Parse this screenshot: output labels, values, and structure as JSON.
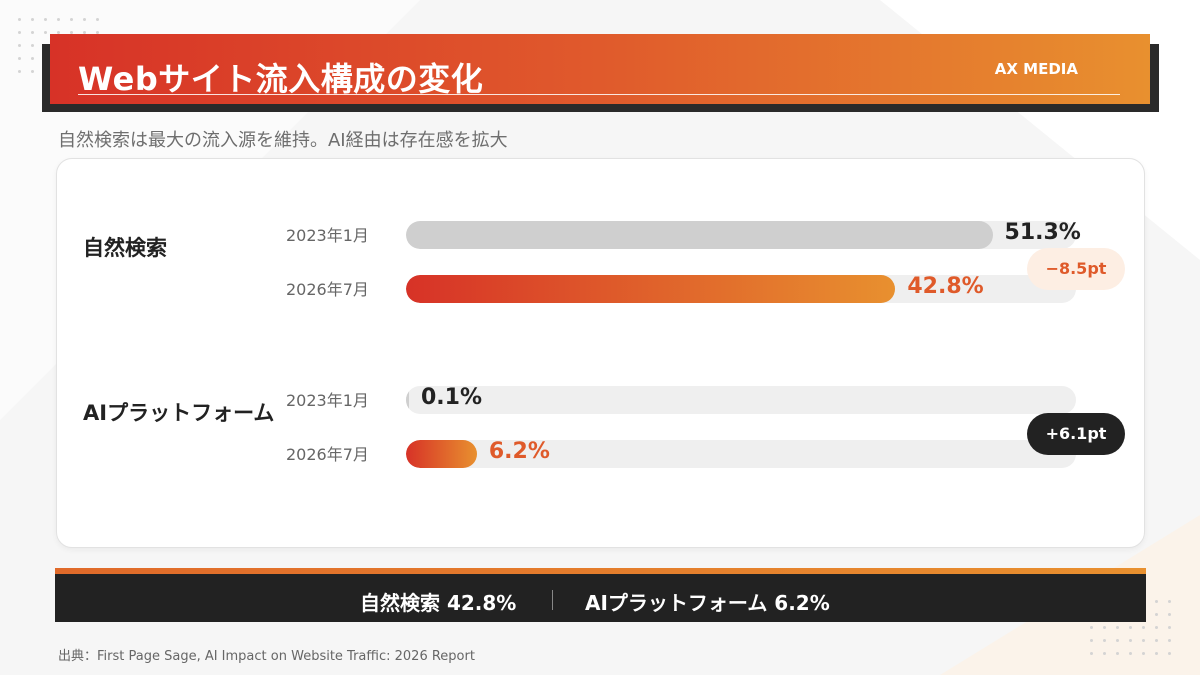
{
  "header": {
    "title": "Webサイト流入構成の変化",
    "brand": "AX MEDIA"
  },
  "subtitle": "自然検索は最大の流入源を維持。AI経由は存在感を拡大",
  "chart_data": {
    "type": "bar",
    "orientation": "horizontal",
    "xlim": [
      0,
      60
    ],
    "groups": [
      {
        "label": "自然検索",
        "periods": [
          {
            "label": "2023年1月",
            "value": 51.3,
            "value_label": "51.3%",
            "style": "gray"
          },
          {
            "label": "2026年7月",
            "value": 42.8,
            "value_label": "42.8%",
            "style": "orange"
          }
        ],
        "change": {
          "label": "−8.5pt",
          "style": "light"
        }
      },
      {
        "label": "AIプラットフォーム",
        "periods": [
          {
            "label": "2023年1月",
            "value": 0.1,
            "value_label": "0.1%",
            "style": "gray"
          },
          {
            "label": "2026年7月",
            "value": 6.2,
            "value_label": "6.2%",
            "style": "orange"
          }
        ],
        "change": {
          "label": "+6.1pt",
          "style": "dark"
        }
      }
    ]
  },
  "summary": {
    "left": "自然検索 42.8%",
    "right": "AIプラットフォーム 6.2%"
  },
  "source": "出典：First Page Sage, AI Impact on Website Traffic: 2026 Report",
  "colors": {
    "accent_start": "#d73227",
    "accent_end": "#e8902f",
    "dark": "#222222"
  }
}
